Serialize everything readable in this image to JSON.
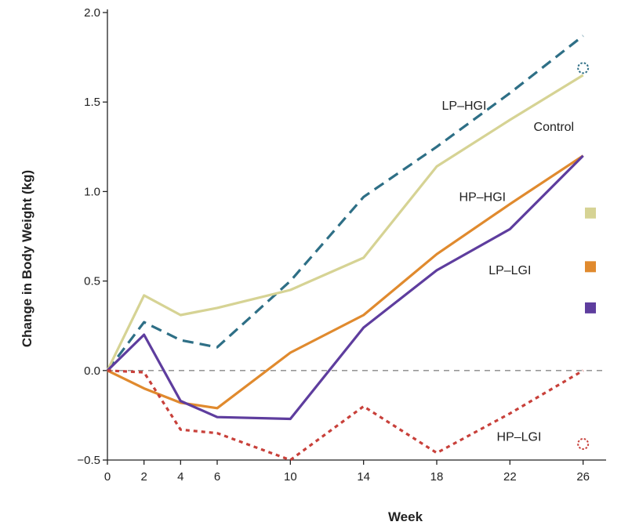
{
  "chart_data": {
    "type": "line",
    "xlabel": "Week",
    "ylabel": "Change in Body Weight (kg)",
    "x_ticks": [
      0,
      2,
      4,
      6,
      10,
      14,
      18,
      22,
      26
    ],
    "y_ticks": [
      -0.5,
      0.0,
      0.5,
      1.0,
      1.5,
      2.0
    ],
    "y_tick_labels": [
      "−0.5",
      "0.0",
      "0.5",
      "1.0",
      "1.5",
      "2.0"
    ],
    "xlim": [
      0,
      27
    ],
    "ylim": [
      -0.5,
      2.0
    ],
    "reference_line": {
      "y": 0,
      "style": "dashed",
      "color": "#888888"
    },
    "series": [
      {
        "name": "LP–HGI",
        "color": "#2e6f86",
        "dash": "dashed",
        "x": [
          0,
          2,
          4,
          6,
          10,
          14,
          18,
          22,
          26
        ],
        "y": [
          0.0,
          0.27,
          0.17,
          0.13,
          0.5,
          0.97,
          1.25,
          1.55,
          1.87
        ],
        "end_marker": {
          "x": 26,
          "y": 1.69,
          "shape": "dotted-circle"
        }
      },
      {
        "name": "Control",
        "color": "#d6d394",
        "dash": "solid",
        "x": [
          0,
          2,
          4,
          6,
          10,
          14,
          18,
          22,
          26
        ],
        "y": [
          0.0,
          0.42,
          0.31,
          0.35,
          0.45,
          0.63,
          1.14,
          1.4,
          1.65
        ],
        "end_marker": {
          "x": 26.4,
          "y": 0.88,
          "shape": "square"
        }
      },
      {
        "name": "HP–HGI",
        "color": "#e08a2e",
        "dash": "solid",
        "x": [
          0,
          2,
          4,
          6,
          10,
          14,
          18,
          22,
          26
        ],
        "y": [
          0.0,
          -0.1,
          -0.18,
          -0.21,
          0.1,
          0.31,
          0.65,
          0.93,
          1.2
        ],
        "end_marker": {
          "x": 26.4,
          "y": 0.58,
          "shape": "square"
        }
      },
      {
        "name": "LP–LGI",
        "color": "#5e3d9e",
        "dash": "solid",
        "x": [
          0,
          2,
          4,
          6,
          10,
          14,
          18,
          22,
          26
        ],
        "y": [
          0.0,
          0.2,
          -0.17,
          -0.26,
          -0.27,
          0.24,
          0.56,
          0.79,
          1.2
        ],
        "end_marker": {
          "x": 26.4,
          "y": 0.35,
          "shape": "square"
        }
      },
      {
        "name": "HP–LGI",
        "color": "#c8403a",
        "dash": "dotted",
        "x": [
          0,
          2,
          4,
          6,
          10,
          14,
          18,
          22,
          26
        ],
        "y": [
          0.0,
          -0.01,
          -0.33,
          -0.35,
          -0.5,
          -0.2,
          -0.46,
          -0.24,
          0.0
        ],
        "end_marker": {
          "x": 26,
          "y": -0.41,
          "shape": "dotted-circle"
        }
      }
    ],
    "labels": [
      {
        "text": "LP–HGI",
        "x": 19.5,
        "y": 1.48
      },
      {
        "text": "Control",
        "x": 24.4,
        "y": 1.36
      },
      {
        "text": "HP–HGI",
        "x": 20.5,
        "y": 0.97
      },
      {
        "text": "LP–LGI",
        "x": 22.0,
        "y": 0.56
      },
      {
        "text": "HP–LGI",
        "x": 22.5,
        "y": -0.37
      }
    ]
  }
}
